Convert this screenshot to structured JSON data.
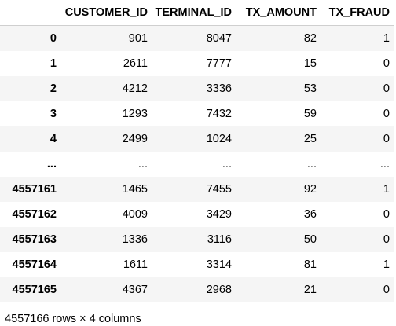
{
  "dataframe": {
    "columns": [
      "",
      "CUSTOMER_ID",
      "TERMINAL_ID",
      "TX_AMOUNT",
      "TX_FRAUD"
    ],
    "rows": [
      {
        "index": "0",
        "customer_id": "901",
        "terminal_id": "8047",
        "tx_amount": "82",
        "tx_fraud": "1"
      },
      {
        "index": "1",
        "customer_id": "2611",
        "terminal_id": "7777",
        "tx_amount": "15",
        "tx_fraud": "0"
      },
      {
        "index": "2",
        "customer_id": "4212",
        "terminal_id": "3336",
        "tx_amount": "53",
        "tx_fraud": "0"
      },
      {
        "index": "3",
        "customer_id": "1293",
        "terminal_id": "7432",
        "tx_amount": "59",
        "tx_fraud": "0"
      },
      {
        "index": "4",
        "customer_id": "2499",
        "terminal_id": "1024",
        "tx_amount": "25",
        "tx_fraud": "0"
      },
      {
        "index": "...",
        "customer_id": "...",
        "terminal_id": "...",
        "tx_amount": "...",
        "tx_fraud": "..."
      },
      {
        "index": "4557161",
        "customer_id": "1465",
        "terminal_id": "7455",
        "tx_amount": "92",
        "tx_fraud": "1"
      },
      {
        "index": "4557162",
        "customer_id": "4009",
        "terminal_id": "3429",
        "tx_amount": "36",
        "tx_fraud": "0"
      },
      {
        "index": "4557163",
        "customer_id": "1336",
        "terminal_id": "3116",
        "tx_amount": "50",
        "tx_fraud": "0"
      },
      {
        "index": "4557164",
        "customer_id": "1611",
        "terminal_id": "3314",
        "tx_amount": "81",
        "tx_fraud": "1"
      },
      {
        "index": "4557165",
        "customer_id": "4367",
        "terminal_id": "2968",
        "tx_amount": "21",
        "tx_fraud": "0"
      }
    ],
    "shape_caption": "4557166 rows × 4 columns"
  },
  "colors": {
    "stripe": "#f5f5f5",
    "header_rule": "#cfcfcf",
    "text": "#000000"
  }
}
